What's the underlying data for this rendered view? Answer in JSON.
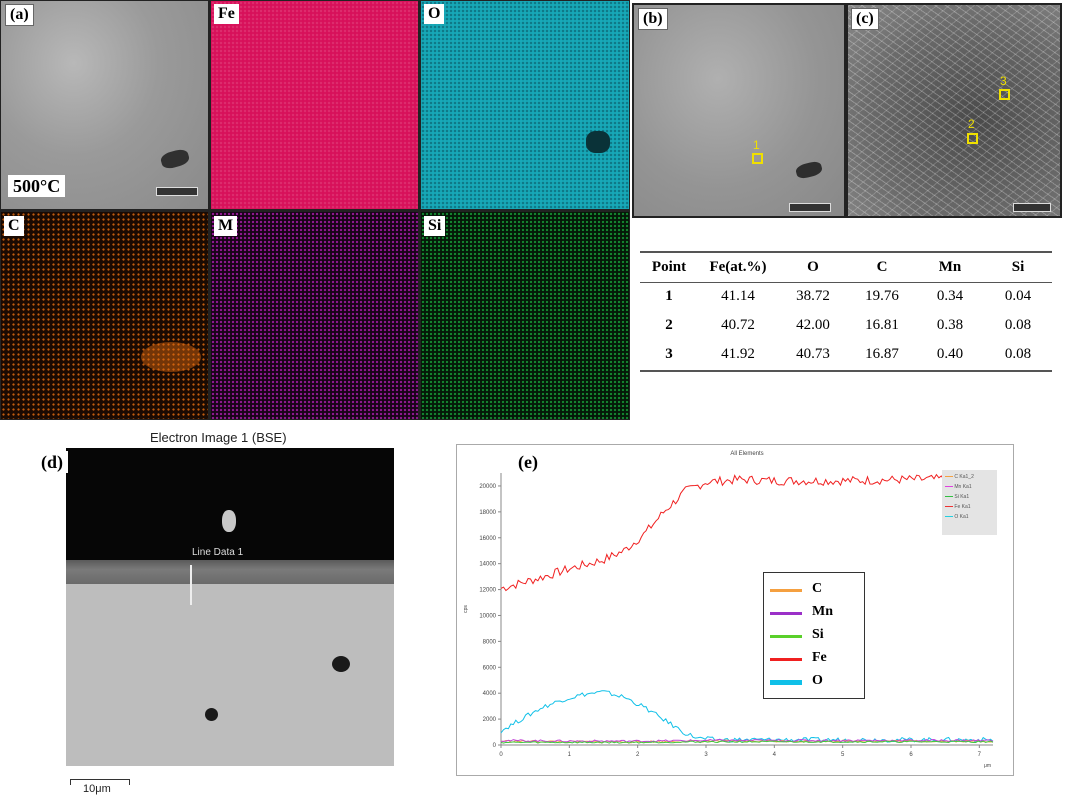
{
  "panel_a": {
    "label": "(a)",
    "temperature": "500°C",
    "maps": [
      {
        "label": "Fe",
        "color": "#d8105a"
      },
      {
        "label": "O",
        "color": "#17b3c3"
      },
      {
        "label": "C",
        "color": "#e06b10"
      },
      {
        "label": "M",
        "color": "#b01fb4"
      },
      {
        "label": "Si",
        "color": "#18a23b"
      }
    ]
  },
  "panel_b": {
    "label": "(b)",
    "points": [
      "1"
    ]
  },
  "panel_c": {
    "label": "(c)",
    "points": [
      "3",
      "2"
    ]
  },
  "point_table": {
    "headers": [
      "Point",
      "Fe(at.%)",
      "O",
      "C",
      "Mn",
      "Si"
    ],
    "rows": [
      [
        "1",
        "41.14",
        "38.72",
        "19.76",
        "0.34",
        "0.04"
      ],
      [
        "2",
        "40.72",
        "42.00",
        "16.81",
        "0.38",
        "0.08"
      ],
      [
        "3",
        "41.92",
        "40.73",
        "16.87",
        "0.40",
        "0.08"
      ]
    ]
  },
  "panel_d": {
    "title": "Electron Image 1 (BSE)",
    "label": "(d)",
    "line_label": "Line Data 1",
    "scale": "10μm"
  },
  "panel_e": {
    "label": "(e)",
    "legend": [
      "C",
      "Mn",
      "Si",
      "Fe",
      "O"
    ],
    "legend_colors": [
      "#f5a040",
      "#9b30c8",
      "#5ad02a",
      "#f02020",
      "#10c0e8"
    ]
  },
  "chart_data": {
    "type": "line",
    "title": "All Elements",
    "xlabel": "μm",
    "ylabel": "cps",
    "xlim": [
      0,
      7.2
    ],
    "ylim": [
      0,
      21000
    ],
    "xticks": [
      "0",
      "1",
      "2",
      "3",
      "4",
      "5",
      "6",
      "7"
    ],
    "yticks": [
      "0",
      "2000",
      "4000",
      "6000",
      "8000",
      "10000",
      "12000",
      "14000",
      "16000",
      "18000",
      "20000"
    ],
    "inset_legend": [
      "C Ka1_2",
      "Mn Ka1",
      "Si Ka1",
      "Fe Ka1",
      "O Ka1"
    ],
    "series": [
      {
        "name": "Fe",
        "x": [
          0,
          0.5,
          1.0,
          1.5,
          1.8,
          2.1,
          2.4,
          2.7,
          3.0,
          3.5,
          4.0,
          5.0,
          6.0,
          7.2
        ],
        "values": [
          12100,
          12800,
          13600,
          14300,
          15000,
          16300,
          18100,
          19600,
          20300,
          20500,
          20400,
          20400,
          20500,
          20600
        ]
      },
      {
        "name": "O",
        "x": [
          0,
          0.3,
          0.6,
          0.9,
          1.2,
          1.5,
          1.8,
          2.1,
          2.4,
          2.7,
          2.9,
          3.2,
          4.0,
          5.0,
          6.0,
          7.2
        ],
        "values": [
          1100,
          2000,
          2900,
          3500,
          3900,
          4100,
          3700,
          2900,
          1900,
          900,
          500,
          400,
          400,
          400,
          400,
          400
        ]
      },
      {
        "name": "C",
        "x": [
          0,
          1,
          2,
          3,
          4,
          5,
          6,
          7.2
        ],
        "values": [
          300,
          250,
          250,
          300,
          300,
          300,
          300,
          300
        ]
      },
      {
        "name": "Mn",
        "x": [
          0,
          1,
          2,
          3,
          4,
          5,
          6,
          7.2
        ],
        "values": [
          350,
          300,
          300,
          350,
          350,
          350,
          350,
          350
        ]
      },
      {
        "name": "Si",
        "x": [
          0,
          1,
          2,
          3,
          4,
          5,
          6,
          7.2
        ],
        "values": [
          200,
          200,
          200,
          250,
          250,
          250,
          250,
          250
        ]
      }
    ]
  }
}
